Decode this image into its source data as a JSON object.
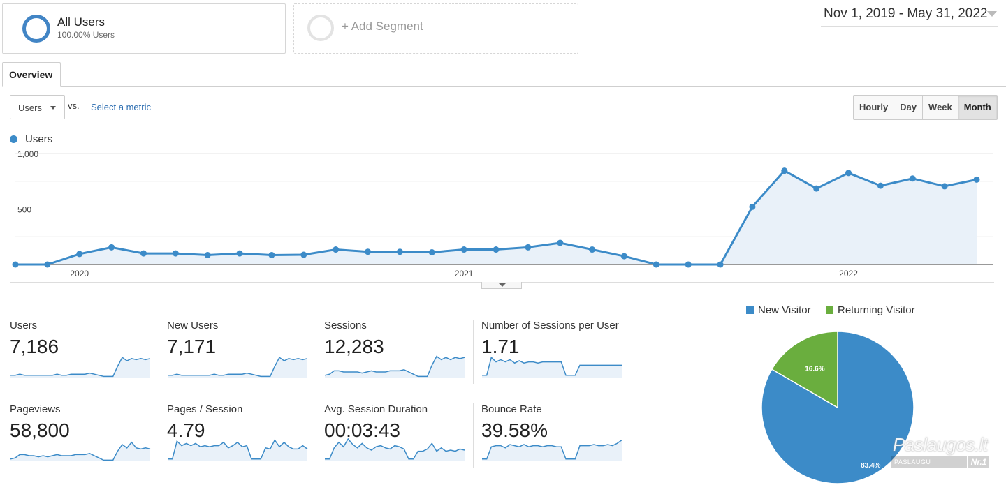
{
  "segments": {
    "active": {
      "title": "All Users",
      "subtitle": "100.00% Users"
    },
    "add_label": "+ Add Segment"
  },
  "date_range": "Nov 1, 2019 - May 31, 2022",
  "tabs": [
    "Overview"
  ],
  "metric_selector": {
    "selected": "Users",
    "vs_label": "vs.",
    "select_metric": "Select a metric"
  },
  "granularity": {
    "options": [
      "Hourly",
      "Day",
      "Week",
      "Month"
    ],
    "active": "Month"
  },
  "colors": {
    "series": "#3c8bc8",
    "fill": "#e9f1f9",
    "new_visitor": "#3c8bc8",
    "returning_visitor": "#6aae3e"
  },
  "chart_data": [
    {
      "type": "line",
      "series": [
        {
          "name": "Users",
          "values": [
            0,
            0,
            95,
            155,
            100,
            100,
            85,
            100,
            85,
            88,
            135,
            115,
            115,
            110,
            135,
            135,
            155,
            195,
            135,
            75,
            0,
            0,
            0,
            520,
            845,
            685,
            825,
            710,
            775,
            705,
            765
          ]
        }
      ],
      "x": [
        "2019-11",
        "2019-12",
        "2020-01",
        "2020-02",
        "2020-03",
        "2020-04",
        "2020-05",
        "2020-06",
        "2020-07",
        "2020-08",
        "2020-09",
        "2020-10",
        "2020-11",
        "2020-12",
        "2021-01",
        "2021-02",
        "2021-03",
        "2021-04",
        "2021-05",
        "2021-06",
        "2021-07",
        "2021-08",
        "2021-09",
        "2021-10",
        "2021-11",
        "2021-12",
        "2022-01",
        "2022-02",
        "2022-03",
        "2022-04",
        "2022-05"
      ],
      "x_tick_labels": [
        "2020",
        "2021",
        "2022"
      ],
      "y_tick_labels": [
        "1,000",
        "500"
      ],
      "ylim": [
        0,
        1000
      ],
      "grid": true,
      "legend": "top-left"
    },
    {
      "type": "pie",
      "categories": [
        "New Visitor",
        "Returning Visitor"
      ],
      "values": [
        83.4,
        16.6
      ],
      "labels": [
        "83.4%",
        "16.6%"
      ],
      "legend": "top"
    }
  ],
  "metrics": [
    {
      "name": "Users",
      "value": "7,186",
      "spark": [
        2,
        2,
        3,
        2,
        2,
        2,
        2,
        2,
        2,
        2,
        3,
        2,
        2,
        3,
        3,
        3,
        3,
        4,
        3,
        2,
        1,
        1,
        1,
        10,
        18,
        15,
        17,
        16,
        17,
        16,
        17
      ]
    },
    {
      "name": "New Users",
      "value": "7,171",
      "spark": [
        2,
        2,
        3,
        2,
        2,
        2,
        2,
        2,
        2,
        2,
        3,
        2,
        2,
        3,
        3,
        3,
        3,
        4,
        3,
        2,
        1,
        1,
        1,
        10,
        18,
        15,
        17,
        16,
        17,
        16,
        17
      ]
    },
    {
      "name": "Sessions",
      "value": "12,283",
      "spark": [
        2,
        3,
        6,
        6,
        5,
        5,
        5,
        5,
        4,
        5,
        6,
        5,
        5,
        5,
        6,
        6,
        6,
        7,
        5,
        3,
        1,
        1,
        1,
        11,
        19,
        16,
        18,
        16,
        18,
        17,
        18
      ]
    },
    {
      "name": "Number of Sessions per User",
      "value": "1.71",
      "spark": [
        2,
        2,
        18,
        14,
        16,
        14,
        16,
        13,
        15,
        13,
        14,
        14,
        13,
        14,
        14,
        14,
        14,
        14,
        2,
        2,
        2,
        11,
        11,
        11,
        11,
        11,
        11,
        11,
        11,
        11,
        11
      ]
    },
    {
      "name": "Pageviews",
      "value": "58,800",
      "spark": [
        2,
        3,
        6,
        6,
        5,
        5,
        4,
        5,
        4,
        5,
        6,
        5,
        5,
        5,
        6,
        6,
        6,
        7,
        5,
        3,
        1,
        1,
        1,
        9,
        15,
        12,
        17,
        12,
        11,
        12,
        11
      ]
    },
    {
      "name": "Pages / Session",
      "value": "4.79",
      "spark": [
        2,
        2,
        18,
        14,
        16,
        14,
        16,
        13,
        14,
        13,
        14,
        14,
        17,
        12,
        14,
        17,
        13,
        14,
        2,
        2,
        2,
        12,
        11,
        19,
        13,
        17,
        13,
        11,
        11,
        14,
        11
      ]
    },
    {
      "name": "Avg. Session Duration",
      "value": "00:03:43",
      "spark": [
        2,
        2,
        12,
        17,
        13,
        20,
        15,
        12,
        16,
        12,
        10,
        13,
        14,
        12,
        11,
        14,
        13,
        11,
        2,
        2,
        9,
        9,
        11,
        16,
        9,
        12,
        9,
        10,
        9,
        11,
        10
      ]
    },
    {
      "name": "Bounce Rate",
      "value": "39.58%",
      "spark": [
        2,
        2,
        13,
        14,
        14,
        12,
        15,
        14,
        13,
        15,
        13,
        14,
        14,
        13,
        14,
        14,
        13,
        13,
        2,
        2,
        2,
        14,
        14,
        14,
        15,
        14,
        14,
        15,
        14,
        16,
        19
      ]
    }
  ],
  "watermark": {
    "main": "Paslaugos.lt",
    "sub": "PASLAUGŲ PORTALAS",
    "nr": "Nr.1"
  }
}
